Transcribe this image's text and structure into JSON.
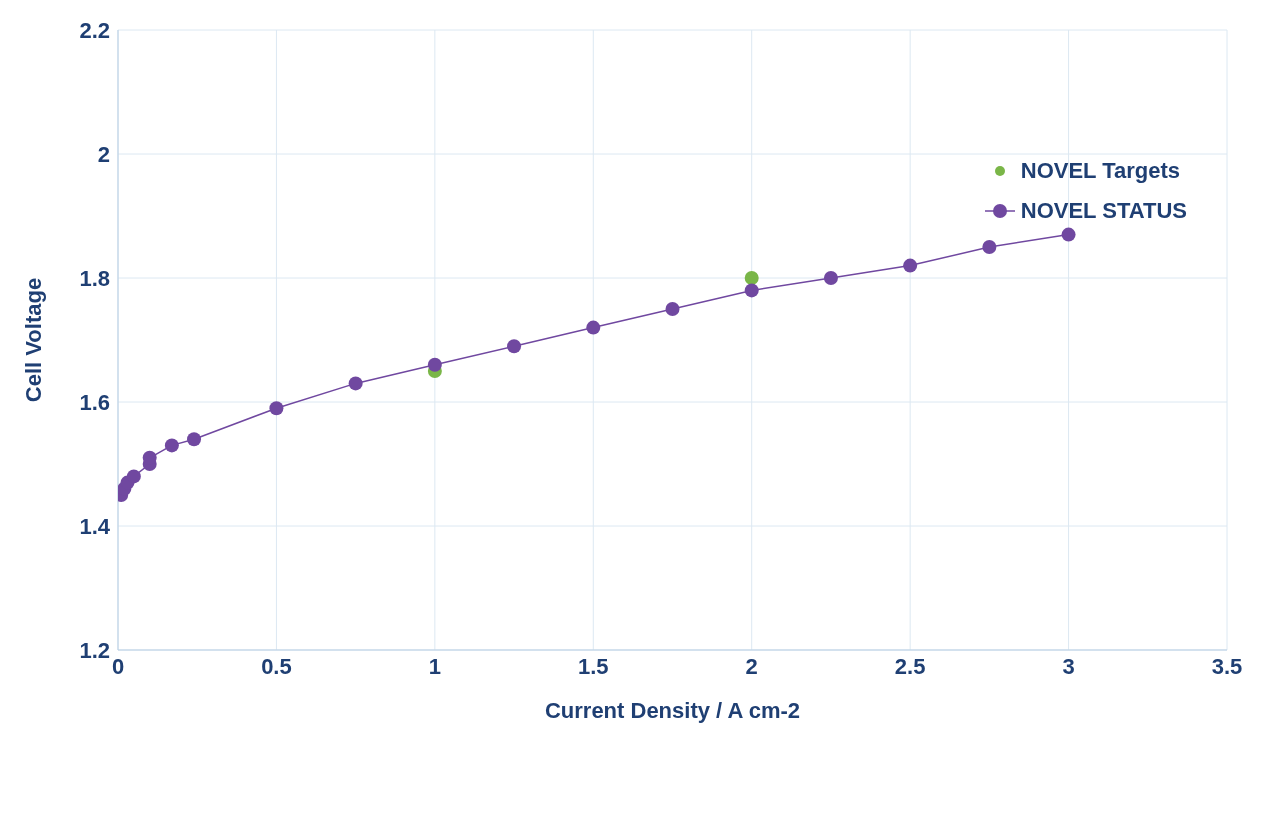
{
  "chart_data": {
    "type": "line",
    "xlabel": "Current Density / A cm-2",
    "ylabel": "Cell Voltage",
    "xlim": [
      0,
      3.5
    ],
    "xticks": [
      0,
      0.5,
      1,
      1.5,
      2,
      2.5,
      3,
      3.5
    ],
    "ylim": [
      1.2,
      2.2
    ],
    "yticks": [
      1.2,
      1.4,
      1.6,
      1.8,
      2,
      2.2
    ],
    "grid": true,
    "legend": "top right",
    "marker": "circle",
    "line_style": "solid",
    "series": [
      {
        "name": "NOVEL Targets",
        "type": "scatter",
        "color": "#7ab648",
        "x": [
          1,
          2
        ],
        "values": [
          1.65,
          1.8
        ]
      },
      {
        "name": "NOVEL STATUS",
        "type": "line",
        "color": "#7048a0",
        "x": [
          0.01,
          0.02,
          0.03,
          0.05,
          0.1,
          0.1,
          0.17,
          0.24,
          0.5,
          0.75,
          1,
          1.25,
          1.5,
          1.75,
          2,
          2.25,
          2.5,
          2.75,
          3
        ],
        "values": [
          1.45,
          1.46,
          1.47,
          1.48,
          1.5,
          1.51,
          1.53,
          1.54,
          1.59,
          1.63,
          1.66,
          1.69,
          1.72,
          1.75,
          1.78,
          1.8,
          1.82,
          1.85,
          1.87
        ]
      }
    ]
  }
}
